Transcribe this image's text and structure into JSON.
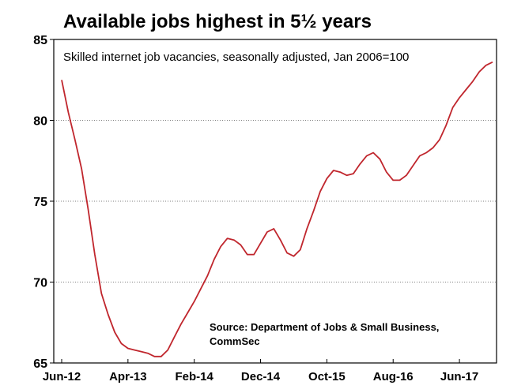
{
  "chart_data": {
    "type": "line",
    "title": "Available jobs highest in 5½ years",
    "subtitle": "Skilled internet job vacancies, seasonally adjusted, Jan 2006=100",
    "source": [
      "Source: Department of Jobs & Small Business,",
      "CommSec"
    ],
    "ylim": [
      65,
      85
    ],
    "yticks": [
      65,
      70,
      75,
      80,
      85
    ],
    "xticks": [
      "Jun-12",
      "Apr-13",
      "Feb-14",
      "Dec-14",
      "Oct-15",
      "Aug-16",
      "Jun-17"
    ],
    "grid": "horizontal dotted",
    "line_color": "#c0262d",
    "series": [
      {
        "x": [
          "Jun-12",
          "Jul-12",
          "Aug-12",
          "Sep-12",
          "Oct-12",
          "Nov-12",
          "Dec-12",
          "Jan-13",
          "Feb-13",
          "Mar-13",
          "Apr-13",
          "May-13",
          "Jun-13",
          "Jul-13",
          "Aug-13",
          "Sep-13",
          "Oct-13",
          "Nov-13",
          "Dec-13",
          "Jan-14",
          "Feb-14",
          "Mar-14",
          "Apr-14",
          "May-14",
          "Jun-14",
          "Jul-14",
          "Aug-14",
          "Sep-14",
          "Oct-14",
          "Nov-14",
          "Dec-14",
          "Jan-15",
          "Feb-15",
          "Mar-15",
          "Apr-15",
          "May-15",
          "Jun-15",
          "Jul-15",
          "Aug-15",
          "Sep-15",
          "Oct-15",
          "Nov-15",
          "Dec-15",
          "Jan-16",
          "Feb-16",
          "Mar-16",
          "Apr-16",
          "May-16",
          "Jun-16",
          "Jul-16",
          "Aug-16",
          "Sep-16",
          "Oct-16",
          "Nov-16",
          "Dec-16",
          "Jan-17",
          "Feb-17",
          "Mar-17",
          "Apr-17",
          "May-17",
          "Jun-17",
          "Jul-17",
          "Aug-17",
          "Sep-17",
          "Oct-17",
          "Nov-17"
        ],
        "values": [
          82.5,
          80.5,
          78.8,
          77.0,
          74.5,
          71.7,
          69.3,
          68.0,
          66.9,
          66.2,
          65.9,
          65.8,
          65.7,
          65.6,
          65.4,
          65.4,
          65.8,
          66.6,
          67.4,
          68.1,
          68.8,
          69.6,
          70.4,
          71.4,
          72.2,
          72.7,
          72.6,
          72.3,
          71.7,
          71.7,
          72.4,
          73.1,
          73.3,
          72.6,
          71.8,
          71.6,
          72.0,
          73.3,
          74.4,
          75.6,
          76.4,
          76.9,
          76.8,
          76.6,
          76.7,
          77.3,
          77.8,
          78.0,
          77.6,
          76.8,
          76.3,
          76.3,
          76.6,
          77.2,
          77.8,
          78.0,
          78.3,
          78.8,
          79.7,
          80.8,
          81.4,
          81.9,
          82.4,
          83.0,
          83.4,
          83.6
        ]
      }
    ]
  }
}
